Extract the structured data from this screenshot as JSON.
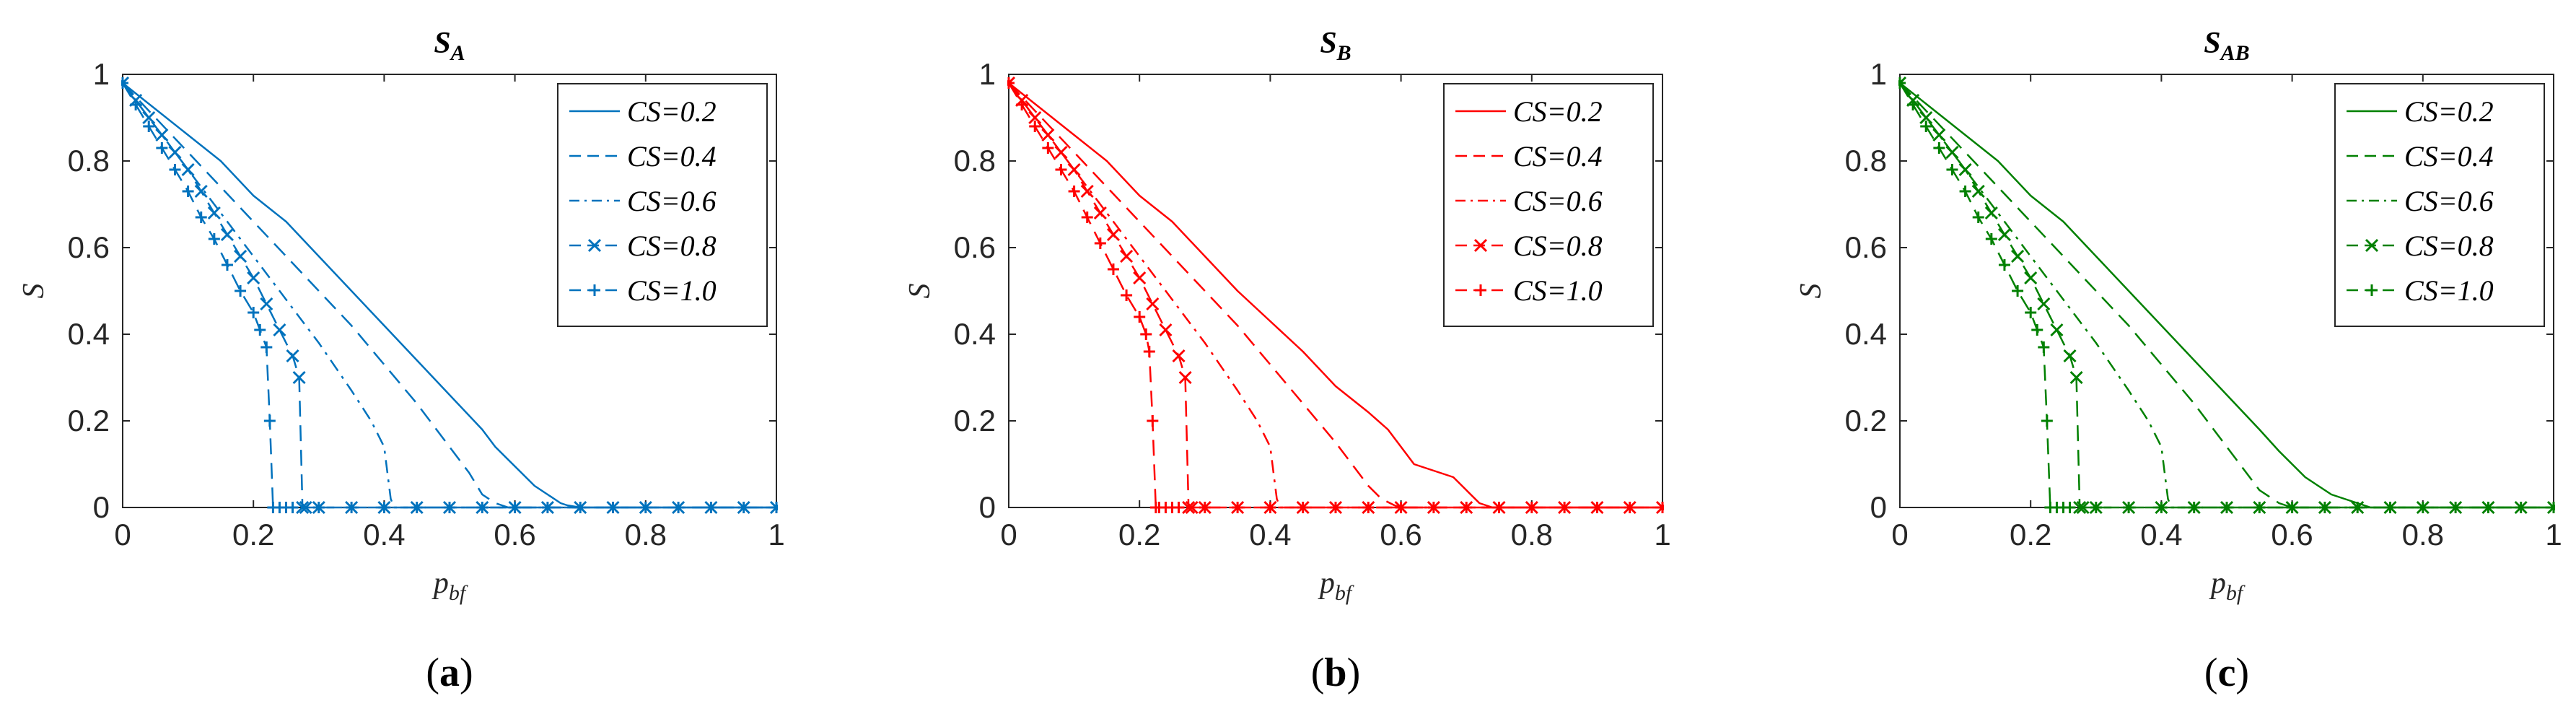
{
  "chart_data": [
    {
      "type": "line",
      "panel": "(a)",
      "panel_letter": "a",
      "title": "S",
      "title_subscript": "A",
      "xlabel": "p",
      "xlabel_subscript": "bf",
      "ylabel": "S",
      "color": "#0072BD",
      "xlim": [
        0,
        1
      ],
      "ylim": [
        0,
        1
      ],
      "x_ticks": [
        0,
        0.2,
        0.4,
        0.6,
        0.8,
        1
      ],
      "x_tick_labels": [
        "0",
        "0.2",
        "0.4",
        "0.6",
        "0.8",
        "1"
      ],
      "y_ticks": [
        0,
        0.2,
        0.4,
        0.6,
        0.8,
        1
      ],
      "y_tick_labels": [
        "0",
        "0.2",
        "0.4",
        "0.6",
        "0.8",
        "1"
      ],
      "legend_position": "top-right",
      "series": [
        {
          "name": "CS=0.2",
          "label": "CS=0.2",
          "style": "solid",
          "marker": "none",
          "x": [
            0,
            0.05,
            0.1,
            0.15,
            0.2,
            0.25,
            0.3,
            0.35,
            0.4,
            0.45,
            0.5,
            0.55,
            0.57,
            0.59,
            0.61,
            0.63,
            0.65,
            0.67,
            0.68,
            0.7,
            0.8,
            0.9,
            1
          ],
          "y": [
            0.98,
            0.92,
            0.86,
            0.8,
            0.72,
            0.66,
            0.58,
            0.5,
            0.42,
            0.34,
            0.26,
            0.18,
            0.14,
            0.11,
            0.08,
            0.05,
            0.03,
            0.01,
            0.005,
            0,
            0,
            0,
            0
          ]
        },
        {
          "name": "CS=0.4",
          "label": "CS=0.4",
          "style": "dashed",
          "marker": "none",
          "x": [
            0,
            0.05,
            0.1,
            0.15,
            0.2,
            0.25,
            0.3,
            0.35,
            0.4,
            0.45,
            0.5,
            0.53,
            0.55,
            0.57,
            0.58,
            0.59,
            0.6,
            0.7,
            0.8,
            0.9,
            1
          ],
          "y": [
            0.98,
            0.9,
            0.82,
            0.74,
            0.66,
            0.58,
            0.5,
            0.42,
            0.33,
            0.24,
            0.14,
            0.08,
            0.03,
            0.01,
            0.005,
            0,
            0,
            0,
            0,
            0,
            0
          ]
        },
        {
          "name": "CS=0.6",
          "label": "CS=0.6",
          "style": "dashdot",
          "marker": "none",
          "x": [
            0,
            0.05,
            0.1,
            0.15,
            0.2,
            0.25,
            0.3,
            0.35,
            0.38,
            0.4,
            0.405,
            0.41,
            0.415,
            0.5,
            0.6,
            0.8,
            1
          ],
          "y": [
            0.98,
            0.88,
            0.78,
            0.68,
            0.58,
            0.48,
            0.38,
            0.27,
            0.2,
            0.14,
            0.08,
            0.02,
            0,
            0,
            0,
            0,
            0
          ]
        },
        {
          "name": "CS=0.8",
          "label": "CS=0.8",
          "style": "dashed",
          "marker": "x",
          "x": [
            0,
            0.02,
            0.04,
            0.06,
            0.08,
            0.1,
            0.12,
            0.14,
            0.16,
            0.18,
            0.2,
            0.22,
            0.24,
            0.26,
            0.27,
            0.275,
            0.28,
            0.3,
            0.35,
            0.4,
            0.45,
            0.5,
            0.55,
            0.6,
            0.65,
            0.7,
            0.75,
            0.8,
            0.85,
            0.9,
            0.95,
            1
          ],
          "y": [
            0.98,
            0.94,
            0.9,
            0.86,
            0.82,
            0.78,
            0.73,
            0.68,
            0.63,
            0.58,
            0.53,
            0.47,
            0.41,
            0.35,
            0.3,
            0,
            0,
            0,
            0,
            0,
            0,
            0,
            0,
            0,
            0,
            0,
            0,
            0,
            0,
            0,
            0,
            0
          ]
        },
        {
          "name": "CS=1.0",
          "label": "CS=1.0",
          "style": "dashed",
          "marker": "+",
          "x": [
            0,
            0.02,
            0.04,
            0.06,
            0.08,
            0.1,
            0.12,
            0.14,
            0.16,
            0.18,
            0.2,
            0.21,
            0.22,
            0.225,
            0.23,
            0.24,
            0.25,
            0.26,
            0.3,
            0.35,
            0.4,
            0.45,
            0.5,
            0.55,
            0.6,
            0.65,
            0.7,
            0.75,
            0.8,
            0.85,
            0.9,
            0.95,
            1
          ],
          "y": [
            0.98,
            0.93,
            0.88,
            0.83,
            0.78,
            0.73,
            0.67,
            0.62,
            0.56,
            0.5,
            0.45,
            0.41,
            0.37,
            0.2,
            0,
            0,
            0,
            0,
            0,
            0,
            0,
            0,
            0,
            0,
            0,
            0,
            0,
            0,
            0,
            0,
            0,
            0,
            0
          ]
        }
      ]
    },
    {
      "type": "line",
      "panel": "(b)",
      "panel_letter": "b",
      "title": "S",
      "title_subscript": "B",
      "xlabel": "p",
      "xlabel_subscript": "bf",
      "ylabel": "S",
      "color": "#FF0000",
      "xlim": [
        0,
        1
      ],
      "ylim": [
        0,
        1
      ],
      "x_ticks": [
        0,
        0.2,
        0.4,
        0.6,
        0.8,
        1
      ],
      "x_tick_labels": [
        "0",
        "0.2",
        "0.4",
        "0.6",
        "0.8",
        "1"
      ],
      "y_ticks": [
        0,
        0.2,
        0.4,
        0.6,
        0.8,
        1
      ],
      "y_tick_labels": [
        "0",
        "0.2",
        "0.4",
        "0.6",
        "0.8",
        "1"
      ],
      "legend_position": "top-right",
      "series": [
        {
          "name": "CS=0.2",
          "label": "CS=0.2",
          "style": "solid",
          "marker": "none",
          "x": [
            0,
            0.05,
            0.1,
            0.15,
            0.2,
            0.25,
            0.3,
            0.35,
            0.4,
            0.45,
            0.5,
            0.55,
            0.58,
            0.6,
            0.62,
            0.64,
            0.66,
            0.68,
            0.7,
            0.72,
            0.74,
            0.8,
            0.9,
            1
          ],
          "y": [
            0.98,
            0.92,
            0.86,
            0.8,
            0.72,
            0.66,
            0.58,
            0.5,
            0.43,
            0.36,
            0.28,
            0.22,
            0.18,
            0.14,
            0.1,
            0.09,
            0.08,
            0.07,
            0.04,
            0.01,
            0,
            0,
            0,
            0
          ]
        },
        {
          "name": "CS=0.4",
          "label": "CS=0.4",
          "style": "dashed",
          "marker": "none",
          "x": [
            0,
            0.05,
            0.1,
            0.15,
            0.2,
            0.25,
            0.3,
            0.35,
            0.4,
            0.45,
            0.5,
            0.53,
            0.55,
            0.57,
            0.59,
            0.6,
            0.7,
            0.8,
            0.9,
            1
          ],
          "y": [
            0.98,
            0.9,
            0.82,
            0.74,
            0.66,
            0.58,
            0.5,
            0.42,
            0.33,
            0.24,
            0.15,
            0.09,
            0.05,
            0.02,
            0.005,
            0,
            0,
            0,
            0,
            0
          ]
        },
        {
          "name": "CS=0.6",
          "label": "CS=0.6",
          "style": "dashdot",
          "marker": "none",
          "x": [
            0,
            0.05,
            0.1,
            0.15,
            0.2,
            0.25,
            0.3,
            0.35,
            0.38,
            0.4,
            0.405,
            0.41,
            0.415,
            0.5,
            0.6,
            0.8,
            1
          ],
          "y": [
            0.98,
            0.88,
            0.78,
            0.68,
            0.58,
            0.48,
            0.38,
            0.27,
            0.2,
            0.14,
            0.08,
            0.02,
            0,
            0,
            0,
            0,
            0
          ]
        },
        {
          "name": "CS=0.8",
          "label": "CS=0.8",
          "style": "dashed",
          "marker": "x",
          "x": [
            0,
            0.02,
            0.04,
            0.06,
            0.08,
            0.1,
            0.12,
            0.14,
            0.16,
            0.18,
            0.2,
            0.22,
            0.24,
            0.26,
            0.27,
            0.275,
            0.28,
            0.3,
            0.35,
            0.4,
            0.45,
            0.5,
            0.55,
            0.6,
            0.65,
            0.7,
            0.75,
            0.8,
            0.85,
            0.9,
            0.95,
            1
          ],
          "y": [
            0.98,
            0.94,
            0.9,
            0.86,
            0.82,
            0.78,
            0.73,
            0.68,
            0.63,
            0.58,
            0.53,
            0.47,
            0.41,
            0.35,
            0.3,
            0,
            0,
            0,
            0,
            0,
            0,
            0,
            0,
            0,
            0,
            0,
            0,
            0,
            0,
            0,
            0,
            0
          ]
        },
        {
          "name": "CS=1.0",
          "label": "CS=1.0",
          "style": "dashed",
          "marker": "+",
          "x": [
            0,
            0.02,
            0.04,
            0.06,
            0.08,
            0.1,
            0.12,
            0.14,
            0.16,
            0.18,
            0.2,
            0.21,
            0.215,
            0.22,
            0.225,
            0.23,
            0.24,
            0.25,
            0.26,
            0.3,
            0.35,
            0.4,
            0.45,
            0.5,
            0.55,
            0.6,
            0.65,
            0.7,
            0.75,
            0.8,
            0.85,
            0.9,
            0.95,
            1
          ],
          "y": [
            0.98,
            0.93,
            0.88,
            0.83,
            0.78,
            0.73,
            0.67,
            0.61,
            0.55,
            0.49,
            0.44,
            0.4,
            0.36,
            0.2,
            0,
            0,
            0,
            0,
            0,
            0,
            0,
            0,
            0,
            0,
            0,
            0,
            0,
            0,
            0,
            0,
            0,
            0,
            0,
            0
          ]
        }
      ]
    },
    {
      "type": "line",
      "panel": "(c)",
      "panel_letter": "c",
      "title": "S",
      "title_subscript": "AB",
      "xlabel": "p",
      "xlabel_subscript": "bf",
      "ylabel": "S",
      "color": "#008000",
      "xlim": [
        0,
        1
      ],
      "ylim": [
        0,
        1
      ],
      "x_ticks": [
        0,
        0.2,
        0.4,
        0.6,
        0.8,
        1
      ],
      "x_tick_labels": [
        "0",
        "0.2",
        "0.4",
        "0.6",
        "0.8",
        "1"
      ],
      "y_ticks": [
        0,
        0.2,
        0.4,
        0.6,
        0.8,
        1
      ],
      "y_tick_labels": [
        "0",
        "0.2",
        "0.4",
        "0.6",
        "0.8",
        "1"
      ],
      "legend_position": "top-right",
      "series": [
        {
          "name": "CS=0.2",
          "label": "CS=0.2",
          "style": "solid",
          "marker": "none",
          "x": [
            0,
            0.05,
            0.1,
            0.15,
            0.2,
            0.25,
            0.3,
            0.35,
            0.4,
            0.45,
            0.5,
            0.55,
            0.58,
            0.6,
            0.62,
            0.64,
            0.66,
            0.68,
            0.7,
            0.71,
            0.72,
            0.8,
            0.9,
            1
          ],
          "y": [
            0.98,
            0.92,
            0.86,
            0.8,
            0.72,
            0.66,
            0.58,
            0.5,
            0.42,
            0.34,
            0.26,
            0.18,
            0.13,
            0.1,
            0.07,
            0.05,
            0.03,
            0.02,
            0.01,
            0.005,
            0,
            0,
            0,
            0
          ]
        },
        {
          "name": "CS=0.4",
          "label": "CS=0.4",
          "style": "dashed",
          "marker": "none",
          "x": [
            0,
            0.05,
            0.1,
            0.15,
            0.2,
            0.25,
            0.3,
            0.35,
            0.4,
            0.45,
            0.5,
            0.53,
            0.55,
            0.57,
            0.58,
            0.59,
            0.6,
            0.7,
            0.8,
            0.9,
            1
          ],
          "y": [
            0.98,
            0.9,
            0.82,
            0.74,
            0.66,
            0.58,
            0.5,
            0.42,
            0.33,
            0.24,
            0.14,
            0.08,
            0.04,
            0.02,
            0.01,
            0.005,
            0,
            0,
            0,
            0,
            0
          ]
        },
        {
          "name": "CS=0.6",
          "label": "CS=0.6",
          "style": "dashdot",
          "marker": "none",
          "x": [
            0,
            0.05,
            0.1,
            0.15,
            0.2,
            0.25,
            0.3,
            0.35,
            0.38,
            0.4,
            0.405,
            0.41,
            0.415,
            0.5,
            0.6,
            0.8,
            1
          ],
          "y": [
            0.98,
            0.88,
            0.78,
            0.68,
            0.58,
            0.48,
            0.38,
            0.27,
            0.2,
            0.14,
            0.08,
            0.02,
            0,
            0,
            0,
            0,
            0
          ]
        },
        {
          "name": "CS=0.8",
          "label": "CS=0.8",
          "style": "dashed",
          "marker": "x",
          "x": [
            0,
            0.02,
            0.04,
            0.06,
            0.08,
            0.1,
            0.12,
            0.14,
            0.16,
            0.18,
            0.2,
            0.22,
            0.24,
            0.26,
            0.27,
            0.275,
            0.28,
            0.3,
            0.35,
            0.4,
            0.45,
            0.5,
            0.55,
            0.6,
            0.65,
            0.7,
            0.75,
            0.8,
            0.85,
            0.9,
            0.95,
            1
          ],
          "y": [
            0.98,
            0.94,
            0.9,
            0.86,
            0.82,
            0.78,
            0.73,
            0.68,
            0.63,
            0.58,
            0.53,
            0.47,
            0.41,
            0.35,
            0.3,
            0,
            0,
            0,
            0,
            0,
            0,
            0,
            0,
            0,
            0,
            0,
            0,
            0,
            0,
            0,
            0,
            0
          ]
        },
        {
          "name": "CS=1.0",
          "label": "CS=1.0",
          "style": "dashed",
          "marker": "+",
          "x": [
            0,
            0.02,
            0.04,
            0.06,
            0.08,
            0.1,
            0.12,
            0.14,
            0.16,
            0.18,
            0.2,
            0.21,
            0.22,
            0.225,
            0.23,
            0.24,
            0.25,
            0.26,
            0.3,
            0.35,
            0.4,
            0.45,
            0.5,
            0.55,
            0.6,
            0.65,
            0.7,
            0.75,
            0.8,
            0.85,
            0.9,
            0.95,
            1
          ],
          "y": [
            0.98,
            0.93,
            0.88,
            0.83,
            0.78,
            0.73,
            0.67,
            0.62,
            0.56,
            0.5,
            0.45,
            0.41,
            0.37,
            0.2,
            0,
            0,
            0,
            0,
            0,
            0,
            0,
            0,
            0,
            0,
            0,
            0,
            0,
            0,
            0,
            0,
            0,
            0,
            0
          ]
        }
      ]
    }
  ]
}
